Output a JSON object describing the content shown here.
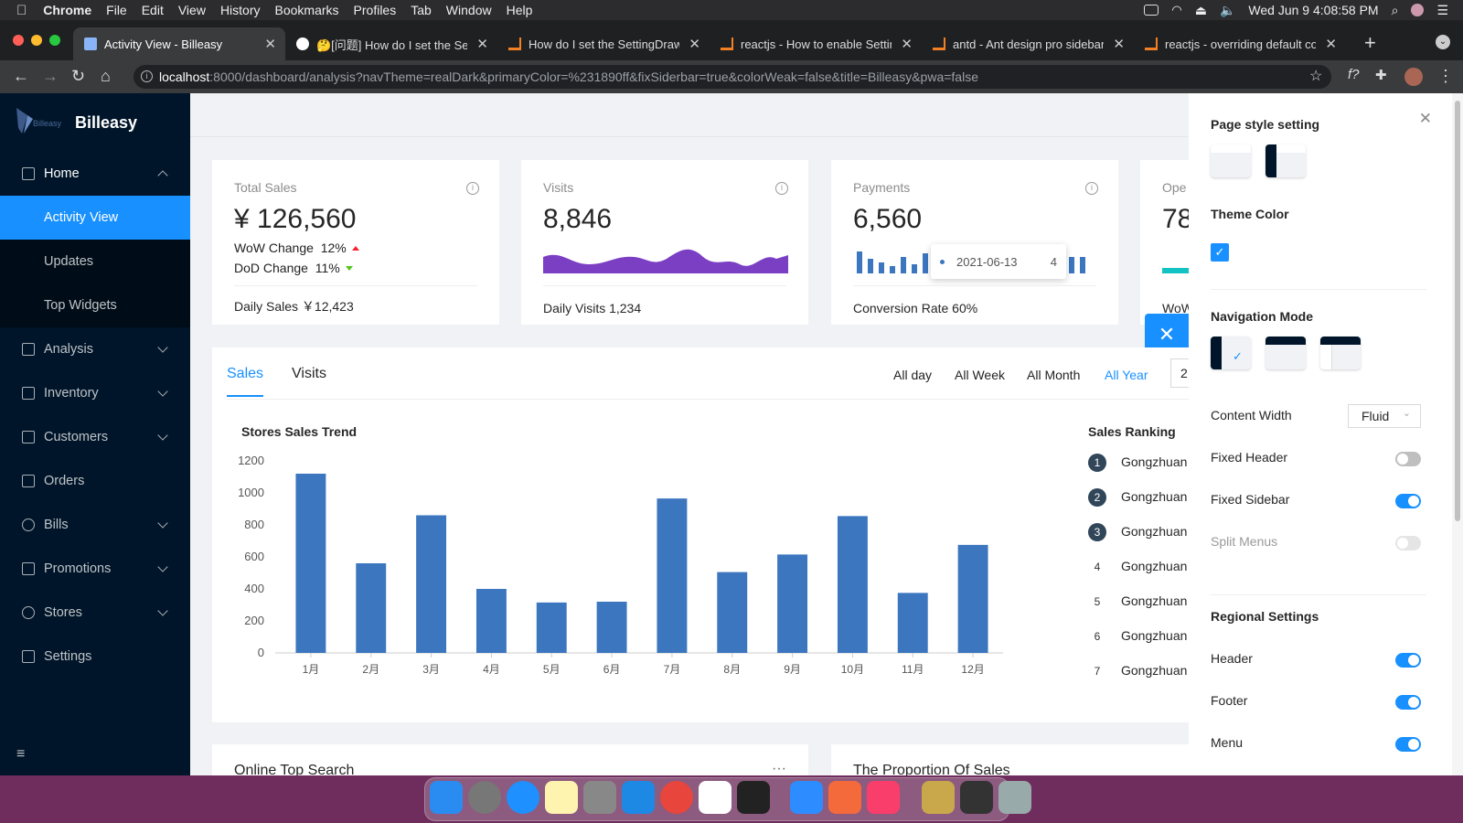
{
  "menubar": {
    "app": "Chrome",
    "items": [
      "File",
      "Edit",
      "View",
      "History",
      "Bookmarks",
      "Profiles",
      "Tab",
      "Window",
      "Help"
    ],
    "datetime": "Wed Jun 9  4:08:58 PM"
  },
  "tabs": [
    {
      "title": "Activity View - Billeasy",
      "icon": "billeasy-icon"
    },
    {
      "title": "🤔[问题] How do I set the Setting",
      "icon": "github-icon"
    },
    {
      "title": "How do I set the SettingDrawer",
      "icon": "stackoverflow-icon"
    },
    {
      "title": "reactjs - How to enable Setting",
      "icon": "stackoverflow-icon"
    },
    {
      "title": "antd - Ant design pro sidebar",
      "icon": "stackoverflow-icon"
    },
    {
      "title": "reactjs - overriding default co",
      "icon": "stackoverflow-icon"
    }
  ],
  "address": {
    "host": "localhost",
    "rest": ":8000/dashboard/analysis?navTheme=realDark&primaryColor=%231890ff&fixSiderbar=true&colorWeak=false&title=Billeasy&pwa=false"
  },
  "sidebar": {
    "brand": "Billeasy",
    "logo_text": "Billeasy",
    "items": [
      {
        "label": "Home",
        "icon": "home-icon",
        "expanded": true
      },
      {
        "label": "Analysis",
        "icon": "edit-icon"
      },
      {
        "label": "Inventory",
        "icon": "table-icon"
      },
      {
        "label": "Customers",
        "icon": "profile-icon"
      },
      {
        "label": "Orders",
        "icon": "file-icon"
      },
      {
        "label": "Bills",
        "icon": "check-circle-icon"
      },
      {
        "label": "Promotions",
        "icon": "warning-icon"
      },
      {
        "label": "Stores",
        "icon": "user-icon"
      },
      {
        "label": "Settings",
        "icon": "highlight-icon"
      }
    ],
    "subitems": [
      "Activity View",
      "Updates",
      "Top Widgets"
    ]
  },
  "cards": {
    "total_sales": {
      "label": "Total Sales",
      "value": "¥ 126,560",
      "wow_label": "WoW Change",
      "wow_value": "12%",
      "dod_label": "DoD Change",
      "dod_value": "11%",
      "footer": "Daily Sales  ￥12,423"
    },
    "visits": {
      "label": "Visits",
      "value": "8,846",
      "footer": "Daily Visits  1,234"
    },
    "payments": {
      "label": "Payments",
      "value": "6,560",
      "footer": "Conversion Rate  60%",
      "tooltip_date": "2021-06-13",
      "tooltip_value": "4"
    },
    "operations": {
      "label": "Ope",
      "value": "78",
      "footer": "WoW"
    }
  },
  "sales_tabs": {
    "tabs": [
      "Sales",
      "Visits"
    ],
    "ranges": [
      "All day",
      "All Week",
      "All Month",
      "All Year"
    ],
    "active_range": "All Year",
    "date_input": "2"
  },
  "chart_title": "Stores Sales Trend",
  "ranking_title": "Sales Ranking",
  "ranking": [
    "Gongzhuan",
    "Gongzhuan",
    "Gongzhuan",
    "Gongzhuan",
    "Gongzhuan",
    "Gongzhuan",
    "Gongzhuan"
  ],
  "bottom_cards": [
    "Online Top Search",
    "The Proportion Of Sales"
  ],
  "chart_data": {
    "type": "bar",
    "categories": [
      "1月",
      "2月",
      "3月",
      "4月",
      "5月",
      "6月",
      "7月",
      "8月",
      "9月",
      "10月",
      "11月",
      "12月"
    ],
    "values": [
      1120,
      560,
      860,
      400,
      315,
      320,
      965,
      505,
      615,
      855,
      375,
      675
    ],
    "yticks": [
      0,
      200,
      400,
      600,
      800,
      1000,
      1200
    ],
    "ylim": [
      0,
      1200
    ],
    "color": "#3b76bf"
  },
  "drawer": {
    "page_style": "Page style setting",
    "theme_color": "Theme Color",
    "theme_hex": "#1890ff",
    "nav_mode": "Navigation Mode",
    "content_width_label": "Content Width",
    "content_width_value": "Fluid",
    "fixed_header": "Fixed Header",
    "fixed_sidebar": "Fixed Sidebar",
    "split_menus": "Split Menus",
    "regional": "Regional Settings",
    "header": "Header",
    "footer": "Footer",
    "menu": "Menu"
  }
}
